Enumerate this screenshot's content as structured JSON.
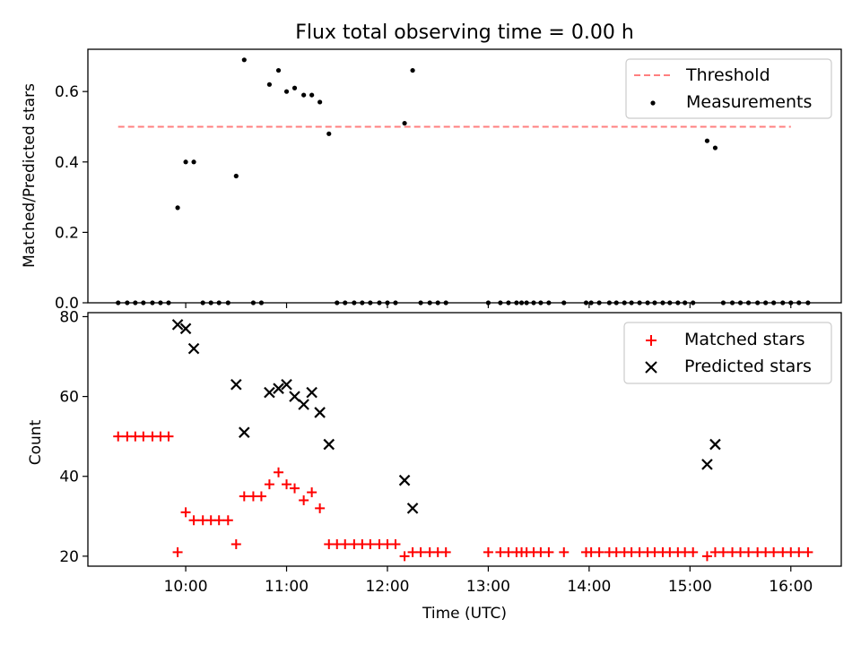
{
  "chart_data": [
    {
      "type": "scatter",
      "title": "Flux total observing time = 0.00 h",
      "xlabel": "",
      "ylabel": "Matched/Predicted stars",
      "xlim": [
        9.03,
        16.5
      ],
      "ylim": [
        0.0,
        0.72
      ],
      "yticks": [
        0.0,
        0.2,
        0.4,
        0.6
      ],
      "ytick_labels": [
        "0.0",
        "0.2",
        "0.4",
        "0.6"
      ],
      "x_unit": "hours UTC",
      "legend_position": "top-right",
      "series": [
        {
          "name": "Threshold",
          "kind": "dashed-line",
          "color": "#ff7f7f",
          "x": [
            9.33,
            16.0
          ],
          "y": [
            0.5,
            0.5
          ]
        },
        {
          "name": "Measurements",
          "kind": "points",
          "color": "#000000",
          "x": [
            9.33,
            9.42,
            9.5,
            9.58,
            9.67,
            9.75,
            9.83,
            9.92,
            10.0,
            10.08,
            10.17,
            10.25,
            10.33,
            10.42,
            10.5,
            10.58,
            10.67,
            10.75,
            10.83,
            10.92,
            11.0,
            11.08,
            11.17,
            11.25,
            11.33,
            11.42,
            11.5,
            11.58,
            11.67,
            11.75,
            11.83,
            11.92,
            12.0,
            12.08,
            12.17,
            12.25,
            12.33,
            12.42,
            12.5,
            12.58,
            13.0,
            13.12,
            13.2,
            13.28,
            13.33,
            13.38,
            13.45,
            13.52,
            13.6,
            13.75,
            13.97,
            14.02,
            14.1,
            14.2,
            14.27,
            14.35,
            14.42,
            14.5,
            14.58,
            14.65,
            14.73,
            14.8,
            14.88,
            14.95,
            15.03,
            15.17,
            15.25,
            15.33,
            15.42,
            15.5,
            15.58,
            15.67,
            15.75,
            15.83,
            15.92,
            16.0,
            16.08,
            16.17
          ],
          "y": [
            0,
            0,
            0,
            0,
            0,
            0,
            0,
            0.27,
            0.4,
            0.4,
            0,
            0,
            0,
            0,
            0.36,
            0.69,
            0,
            0,
            0.62,
            0.66,
            0.6,
            0.61,
            0.59,
            0.59,
            0.57,
            0.48,
            0,
            0,
            0,
            0,
            0,
            0,
            0,
            0,
            0.51,
            0.66,
            0,
            0,
            0,
            0,
            0,
            0,
            0,
            0,
            0,
            0,
            0,
            0,
            0,
            0,
            0,
            0,
            0,
            0,
            0,
            0,
            0,
            0,
            0,
            0,
            0,
            0,
            0,
            0,
            0,
            0.46,
            0.44,
            0,
            0,
            0,
            0,
            0,
            0,
            0,
            0,
            0,
            0,
            0
          ]
        }
      ]
    },
    {
      "type": "scatter",
      "title": "",
      "xlabel": "Time (UTC)",
      "ylabel": "Count",
      "xlim": [
        9.03,
        16.5
      ],
      "ylim": [
        17.5,
        81
      ],
      "yticks": [
        20,
        40,
        60,
        80
      ],
      "ytick_labels": [
        "20",
        "40",
        "60",
        "80"
      ],
      "xticks": [
        10,
        11,
        12,
        13,
        14,
        15,
        16
      ],
      "xtick_labels": [
        "10:00",
        "11:00",
        "12:00",
        "13:00",
        "14:00",
        "15:00",
        "16:00"
      ],
      "x_unit": "hours UTC",
      "legend_position": "top-right",
      "series": [
        {
          "name": "Matched stars",
          "kind": "plus-markers",
          "color": "#ff0000",
          "x": [
            9.33,
            9.42,
            9.5,
            9.58,
            9.67,
            9.75,
            9.83,
            9.92,
            10.0,
            10.08,
            10.17,
            10.25,
            10.33,
            10.42,
            10.5,
            10.58,
            10.67,
            10.75,
            10.83,
            10.92,
            11.0,
            11.08,
            11.17,
            11.25,
            11.33,
            11.42,
            11.5,
            11.58,
            11.67,
            11.75,
            11.83,
            11.92,
            12.0,
            12.08,
            12.17,
            12.25,
            12.33,
            12.42,
            12.5,
            12.58,
            13.0,
            13.12,
            13.2,
            13.28,
            13.33,
            13.38,
            13.45,
            13.52,
            13.6,
            13.75,
            13.97,
            14.02,
            14.1,
            14.2,
            14.27,
            14.35,
            14.42,
            14.5,
            14.58,
            14.65,
            14.73,
            14.8,
            14.88,
            14.95,
            15.03,
            15.17,
            15.25,
            15.33,
            15.42,
            15.5,
            15.58,
            15.67,
            15.75,
            15.83,
            15.92,
            16.0,
            16.08,
            16.17
          ],
          "y": [
            50,
            50,
            50,
            50,
            50,
            50,
            50,
            21,
            31,
            29,
            29,
            29,
            29,
            29,
            23,
            35,
            35,
            35,
            38,
            41,
            38,
            37,
            34,
            36,
            32,
            23,
            23,
            23,
            23,
            23,
            23,
            23,
            23,
            23,
            20,
            21,
            21,
            21,
            21,
            21,
            21,
            21,
            21,
            21,
            21,
            21,
            21,
            21,
            21,
            21,
            21,
            21,
            21,
            21,
            21,
            21,
            21,
            21,
            21,
            21,
            21,
            21,
            21,
            21,
            21,
            20,
            21,
            21,
            21,
            21,
            21,
            21,
            21,
            21,
            21,
            21,
            21,
            21
          ]
        },
        {
          "name": "Predicted stars",
          "kind": "x-markers",
          "color": "#000000",
          "x": [
            9.92,
            10.0,
            10.08,
            10.5,
            10.58,
            10.83,
            10.92,
            11.0,
            11.08,
            11.17,
            11.25,
            11.33,
            11.42,
            12.17,
            12.25,
            15.17,
            15.25
          ],
          "y": [
            78,
            77,
            72,
            63,
            51,
            61,
            62,
            63,
            60,
            58,
            61,
            56,
            48,
            39,
            32,
            43,
            48
          ]
        }
      ]
    }
  ]
}
